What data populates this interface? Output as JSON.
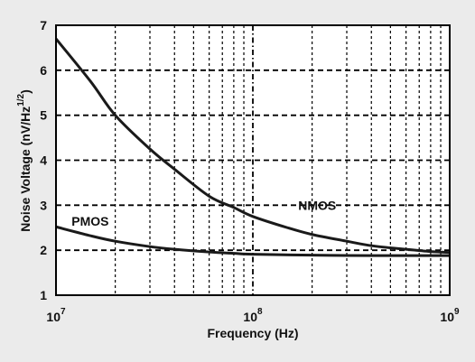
{
  "chart_data": {
    "type": "line",
    "xlabel": "Frequency (Hz)",
    "ylabel_parts": {
      "main": "Noise Voltage (nV/Hz",
      "sup": "1/2",
      "close": ")"
    },
    "x_scale": "log",
    "xlim": [
      10000000,
      1000000000
    ],
    "ylim": [
      1,
      7
    ],
    "x_ticks": [
      {
        "base": "10",
        "exp": "7",
        "value": 10000000
      },
      {
        "base": "10",
        "exp": "8",
        "value": 100000000
      },
      {
        "base": "10",
        "exp": "9",
        "value": 1000000000
      }
    ],
    "y_ticks": [
      "1",
      "2",
      "3",
      "4",
      "5",
      "6",
      "7"
    ],
    "grid": true,
    "series": [
      {
        "name": "NMOS",
        "color": "#1a1a1a",
        "x": [
          10000000,
          15000000,
          20000000,
          30000000,
          40000000,
          60000000,
          80000000,
          100000000,
          150000000,
          200000000,
          300000000,
          400000000,
          600000000,
          800000000,
          1000000000
        ],
        "y": [
          6.7,
          5.75,
          5.0,
          4.25,
          3.8,
          3.2,
          2.95,
          2.75,
          2.5,
          2.35,
          2.2,
          2.1,
          2.02,
          1.97,
          1.95
        ]
      },
      {
        "name": "PMOS",
        "color": "#1a1a1a",
        "x": [
          10000000,
          15000000,
          20000000,
          30000000,
          40000000,
          60000000,
          80000000,
          100000000,
          200000000,
          400000000,
          1000000000
        ],
        "y": [
          2.52,
          2.32,
          2.2,
          2.08,
          2.02,
          1.96,
          1.93,
          1.91,
          1.89,
          1.88,
          1.88
        ]
      }
    ],
    "annotations": [
      {
        "text": "NMOS",
        "x": 170000000,
        "y": 2.9
      },
      {
        "text": "PMOS",
        "x": 12000000,
        "y": 2.55
      }
    ]
  }
}
